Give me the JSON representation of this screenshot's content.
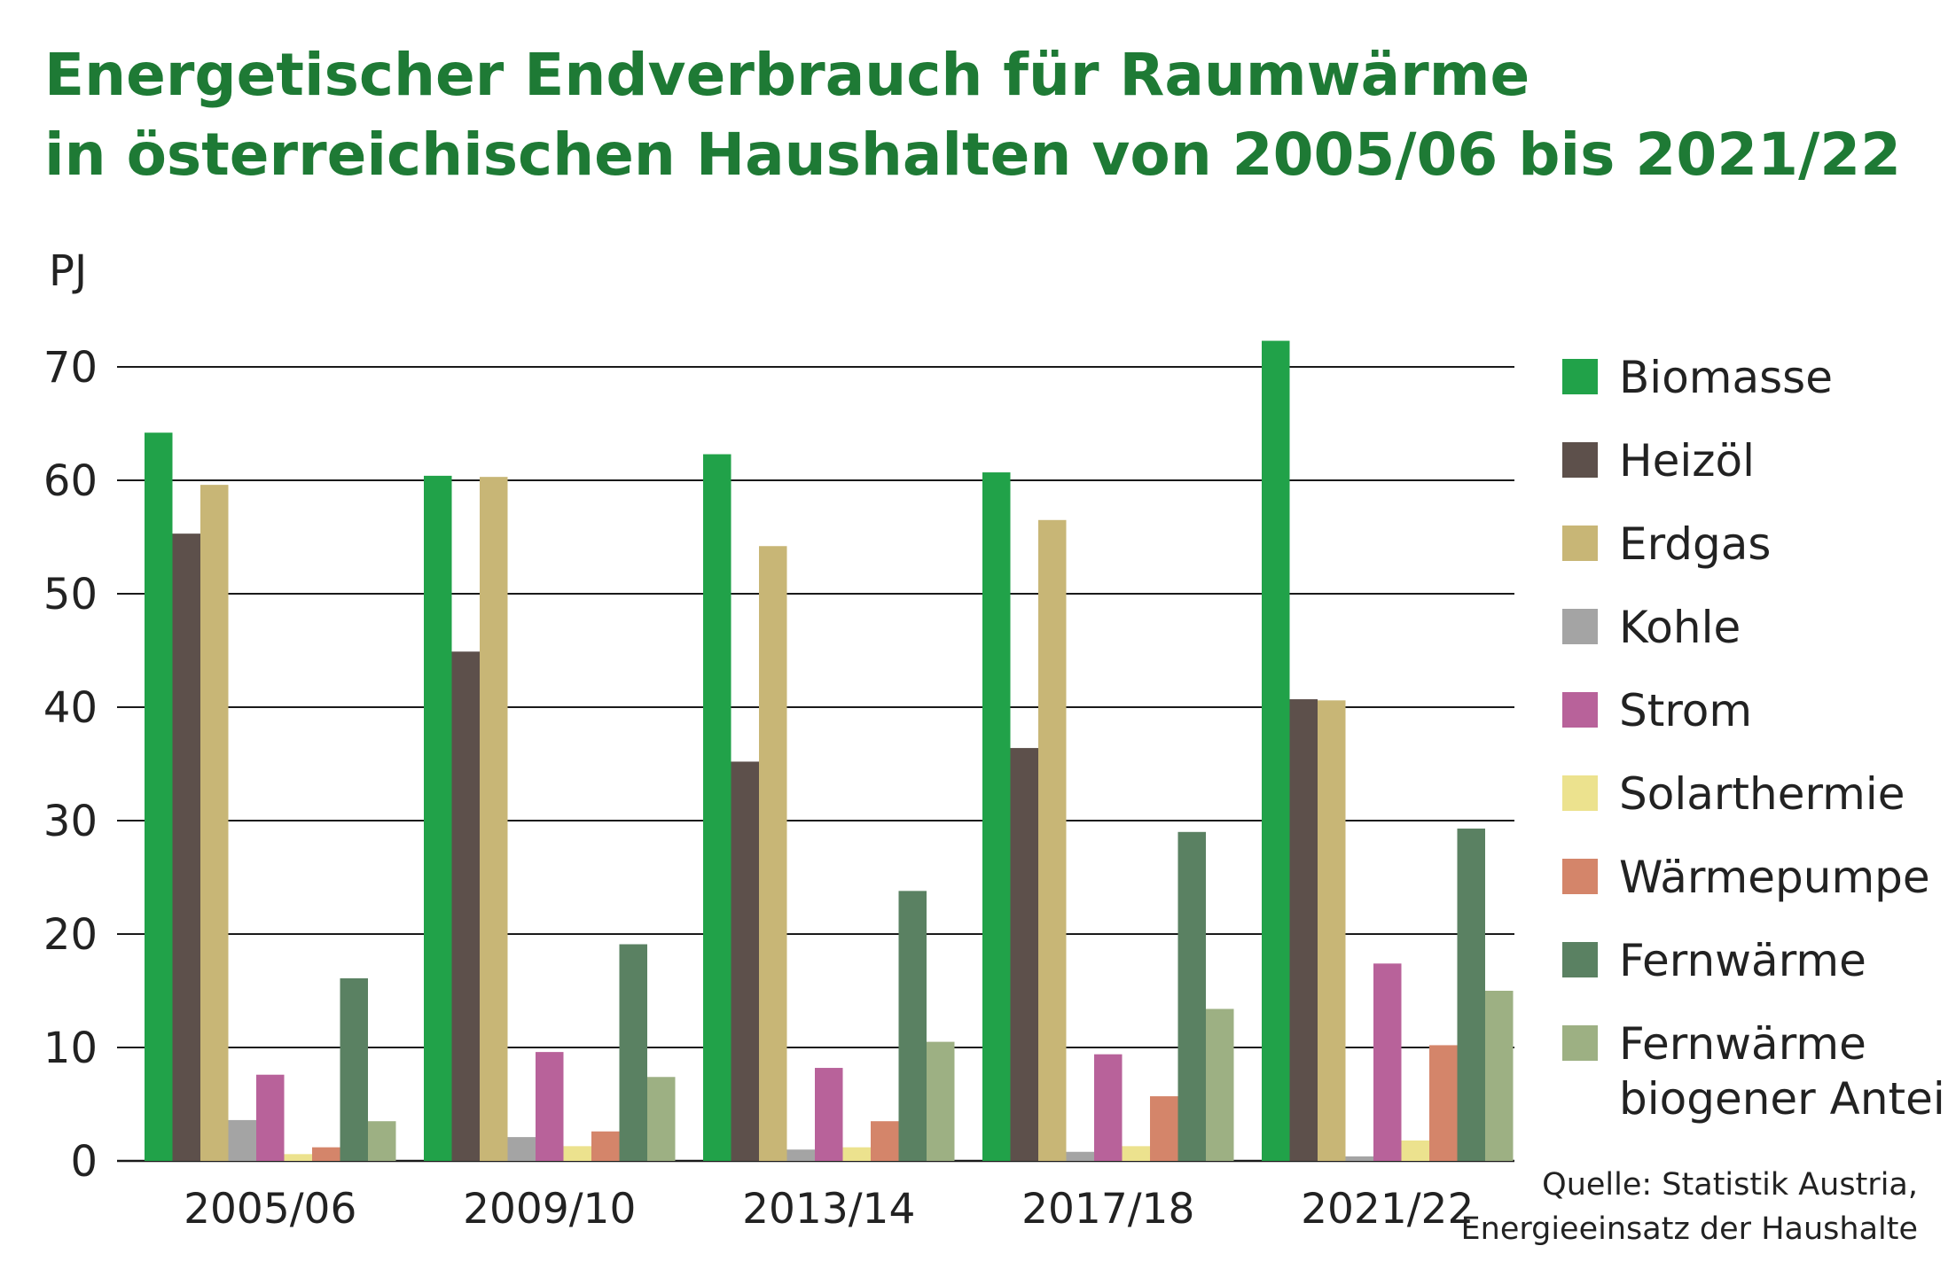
{
  "chart_data": {
    "type": "bar",
    "title": [
      "Energetischer Endverbrauch für Raumwärme",
      "in österreichischen Haushalten von 2005/06 bis 2021/22"
    ],
    "ylabel": "PJ",
    "ylim": [
      0,
      70
    ],
    "yticks": [
      "0",
      "10",
      "20",
      "30",
      "40",
      "50",
      "60",
      "70"
    ],
    "grid": true,
    "legend_position": "right",
    "categories": [
      "2005/06",
      "2009/10",
      "2013/14",
      "2017/18",
      "2021/22"
    ],
    "series": [
      {
        "name": "Biomasse",
        "color": "#21a249",
        "values": [
          64.2,
          60.4,
          62.3,
          60.7,
          72.3
        ]
      },
      {
        "name": "Heizöl",
        "color": "#5d504b",
        "values": [
          55.3,
          44.9,
          35.2,
          36.4,
          40.7
        ]
      },
      {
        "name": "Erdgas",
        "color": "#c8b676",
        "values": [
          59.6,
          60.3,
          54.2,
          56.5,
          40.6
        ]
      },
      {
        "name": "Kohle",
        "color": "#a4a4a4",
        "values": [
          3.6,
          2.1,
          1.0,
          0.8,
          0.4
        ]
      },
      {
        "name": "Strom",
        "color": "#b8629a",
        "values": [
          7.6,
          9.6,
          8.2,
          9.4,
          17.4
        ]
      },
      {
        "name": "Solarthermie",
        "color": "#ece28e",
        "values": [
          0.6,
          1.3,
          1.2,
          1.3,
          1.8
        ]
      },
      {
        "name": "Wärmepumpe",
        "color": "#d4856a",
        "values": [
          1.2,
          2.6,
          3.5,
          5.7,
          10.2
        ]
      },
      {
        "name": "Fernwärme",
        "color": "#5a8162",
        "values": [
          16.1,
          19.1,
          23.8,
          29.0,
          29.3
        ]
      },
      {
        "name": "Fernwärme biogener Anteil",
        "color": "#9db083",
        "values": [
          3.5,
          7.4,
          10.5,
          13.4,
          15.0
        ]
      }
    ],
    "legend": [
      {
        "label": "Biomasse",
        "color": "#21a249"
      },
      {
        "label": "Heizöl",
        "color": "#5d504b"
      },
      {
        "label": "Erdgas",
        "color": "#c8b676"
      },
      {
        "label": "Kohle",
        "color": "#a4a4a4"
      },
      {
        "label": "Strom",
        "color": "#b8629a"
      },
      {
        "label": "Solarthermie",
        "color": "#ece28e"
      },
      {
        "label": "Wärmepumpe",
        "color": "#d4856a"
      },
      {
        "label": "Fernwärme",
        "color": "#5a8162"
      },
      {
        "label": [
          "Fernwärme",
          "biogener Anteil"
        ],
        "color": "#9db083"
      }
    ],
    "source": [
      "Quelle: Statistik Austria,",
      "Energieeinsatz der Haushalte"
    ]
  }
}
